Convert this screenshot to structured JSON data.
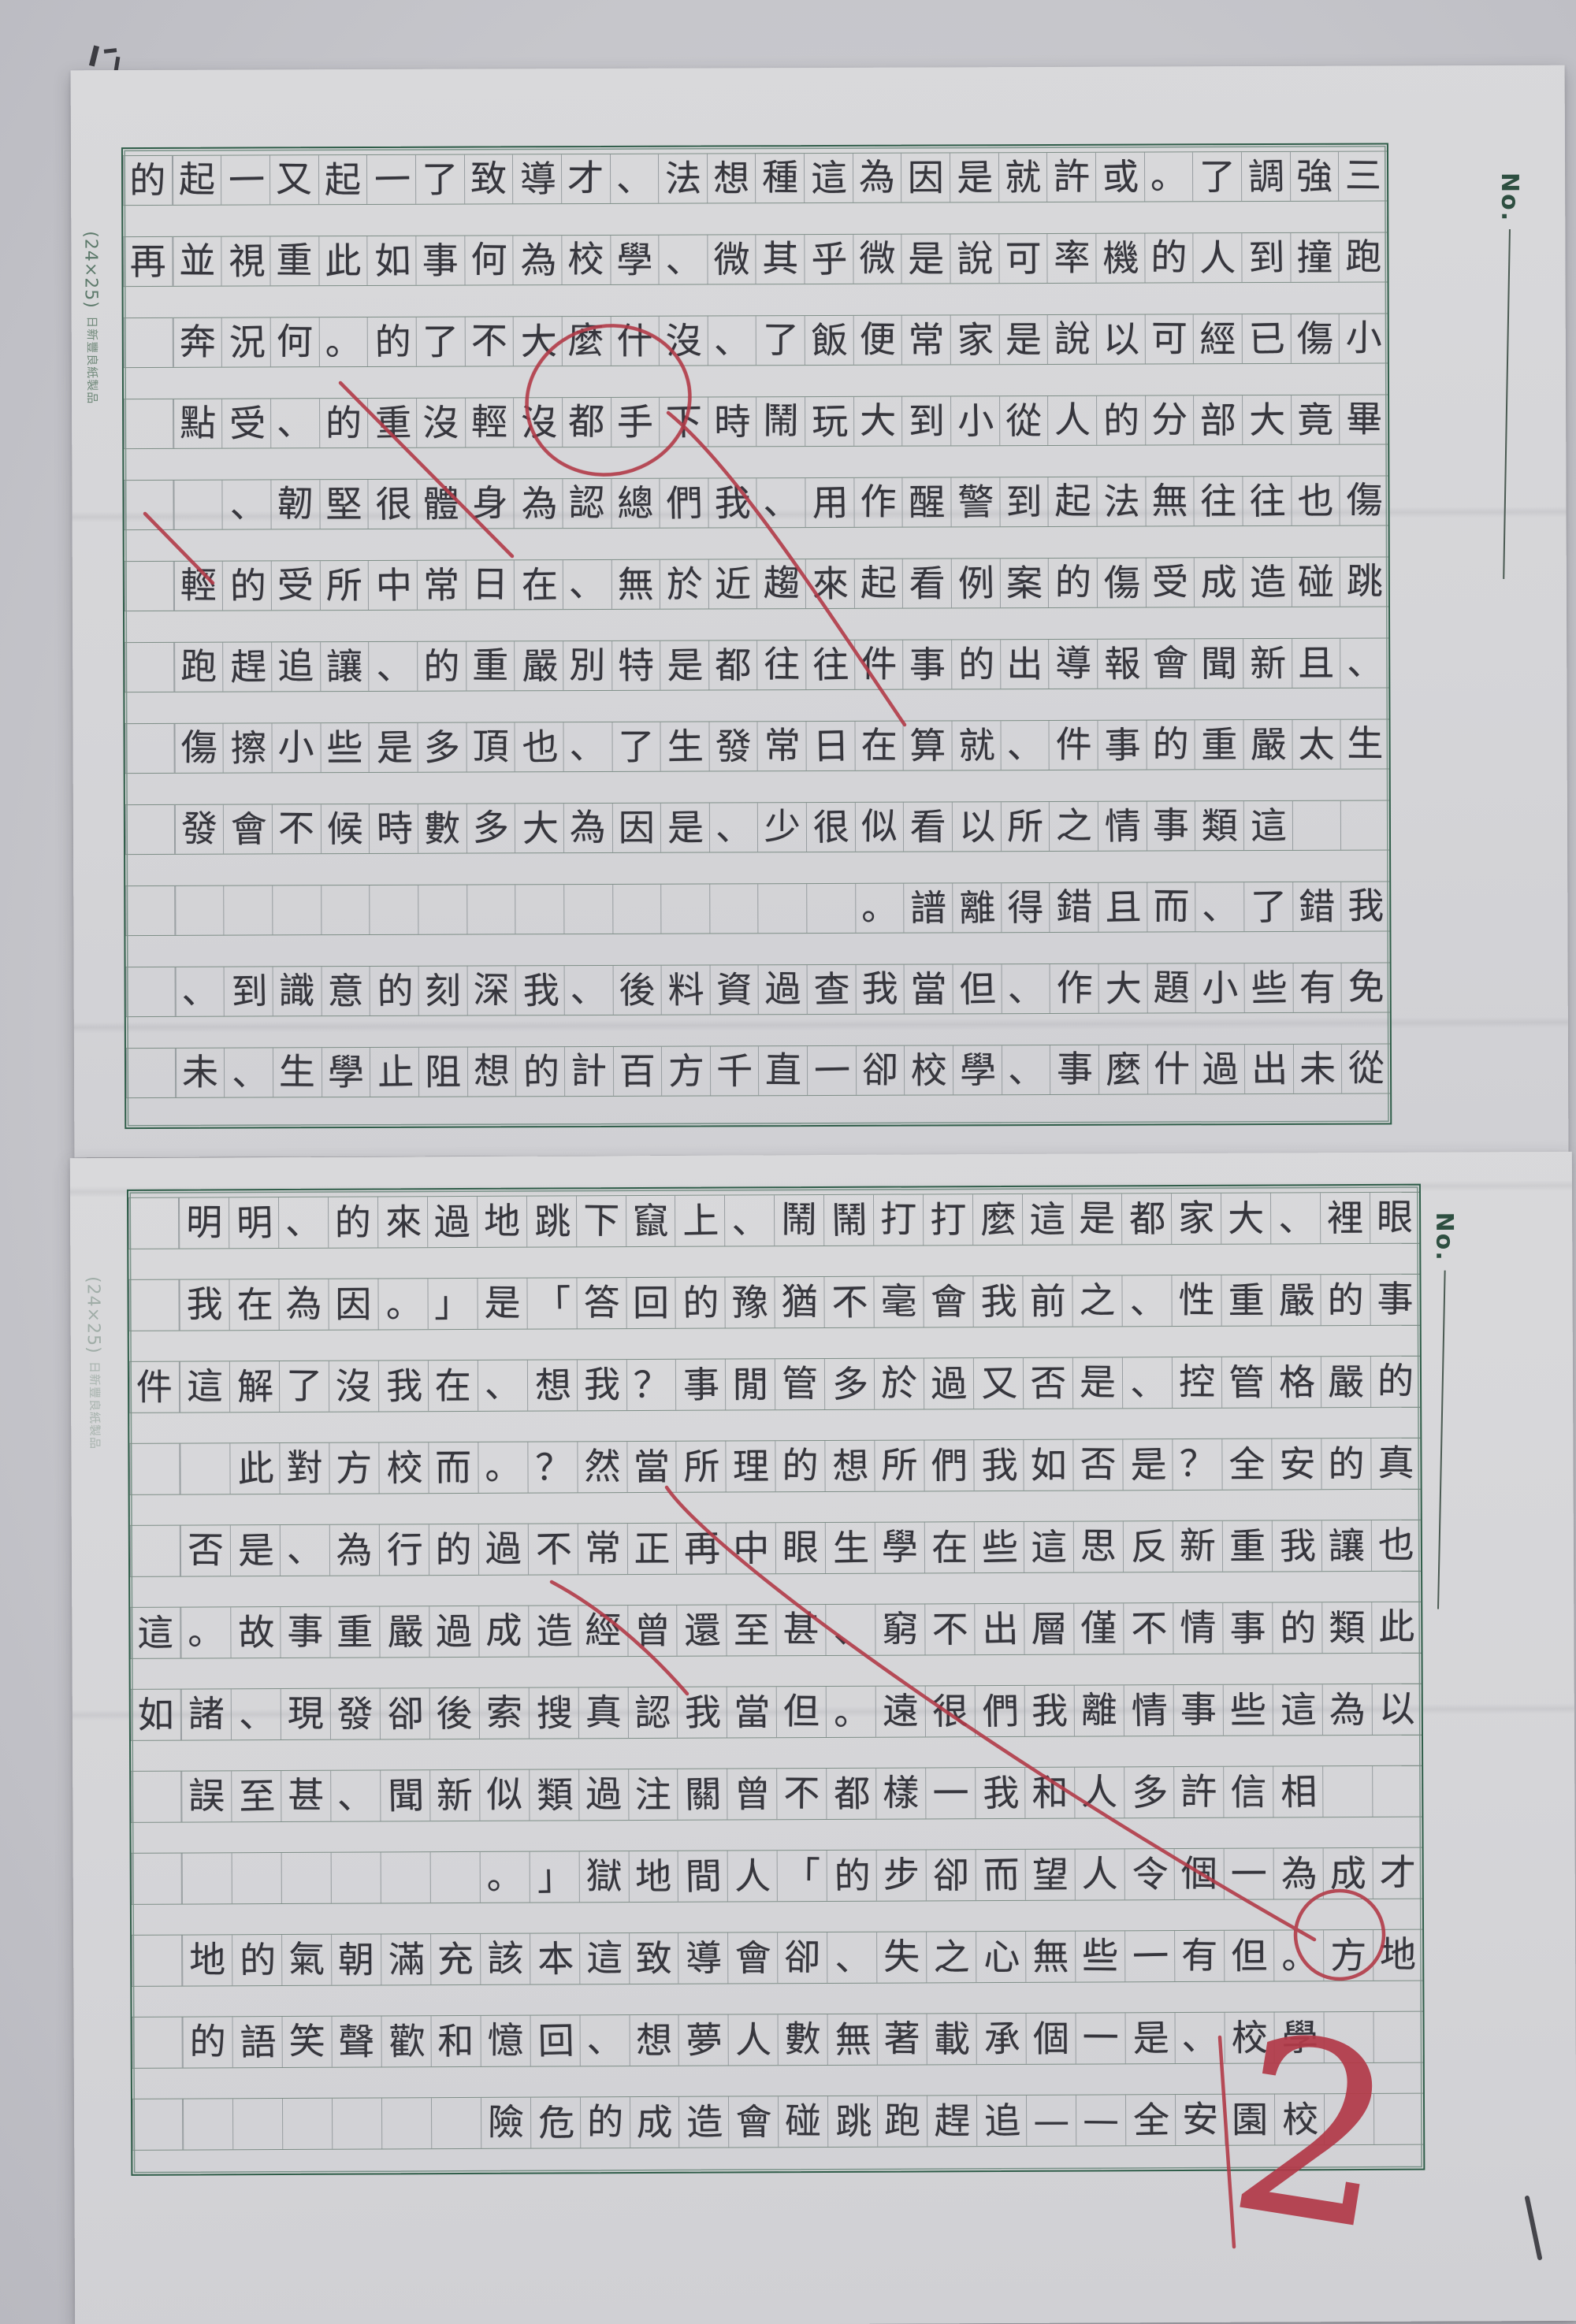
{
  "document_type": "handwritten Chinese essay on green-ruled manuscript paper, two sheets, vertical-use grid rotated sideways, read right-to-left per row from bottom row up",
  "essay_title": "校園安全——追趕跑跳碰會造成的危險",
  "colors": {
    "background": "#c6c6cb",
    "paper": "#d7d7d9",
    "grid_frame_green": "#2f5d49",
    "cell_line_gray": "#979da0",
    "handwriting": "#36363d",
    "printed_label_green": "#5d7a6b",
    "correction_red": "#b23a48"
  },
  "sheet1": {
    "no_label": "No.",
    "corner_label": "(24×25)",
    "maker_label": "日新豐良紙製品",
    "rows": [
      "三強調了。或許就是因為這種想法、才導致了一起又一起的",
      "跑撞到人的機率可說是微乎其微、學校為何事如此重視並再",
      "小傷已經可以說是家常便飯了、沒什麼大不了的。何況奔",
      "畢竟大部分的人從小到大玩鬧時下手都沒輕沒重的、受點",
      "傷也往往無法起到警醒作用、我們總認為身體很堅韌、",
      "跳碰造成受傷的案例看起來趨近於無、在日常中所受的輕",
      "、且新聞會報導出的事件往往都是特別嚴重的、讓追趕跑",
      "生太嚴重的事件、就算在日常發生了、也頂多是些小擦傷",
      "　　這類事情之所以看似很少、是因為大多數時候不會發",
      "我錯了、而且錯得離譜。",
      "免有些小題大作、但當我查過資料後、我深刻的意識到、",
      "從未出過什麼事、學校卻一直千方百計的想阻止學生、未"
    ]
  },
  "sheet2": {
    "no_label": "No.",
    "corner_label": "(24×25)",
    "maker_label": "日新豐良紙製品",
    "rows": [
      "眼裡、大家都是這麼打打鬧鬧、上竄下跳地過來的、明明",
      "事的嚴重性、之前我會毫不猶豫的回答「是」。因為在我",
      "的嚴格管控、是否又過於多管閒事？我想、在我沒了解這件",
      "真的安全？是否如我們所想的理所當然？。而校方對此",
      "也讓我重新反思這些在學生眼中再正常不過的行為、是否",
      "此類的事情不僅層出不窮、甚至還曾經造成過嚴重事故。這",
      "以為這些事情離我們很遠。但當我認真搜索後卻發現、諸如",
      "　　相信許多人和我一樣都不曾關注過類似新聞、甚至誤",
      "才成為一個令人望而卻步的「人間地獄」。",
      "地方。但有一些無心之失、卻會導致這本該充滿朝氣的地",
      "　　學校、是一個承載著無數人夢想、回憶和歡聲笑語的",
      "　　校園安全——追趕跑跳碰會造成的危險"
    ],
    "teacher_page_mark": "2"
  },
  "layout": {
    "cells_per_row": 26,
    "rows_per_sheet": 12
  }
}
